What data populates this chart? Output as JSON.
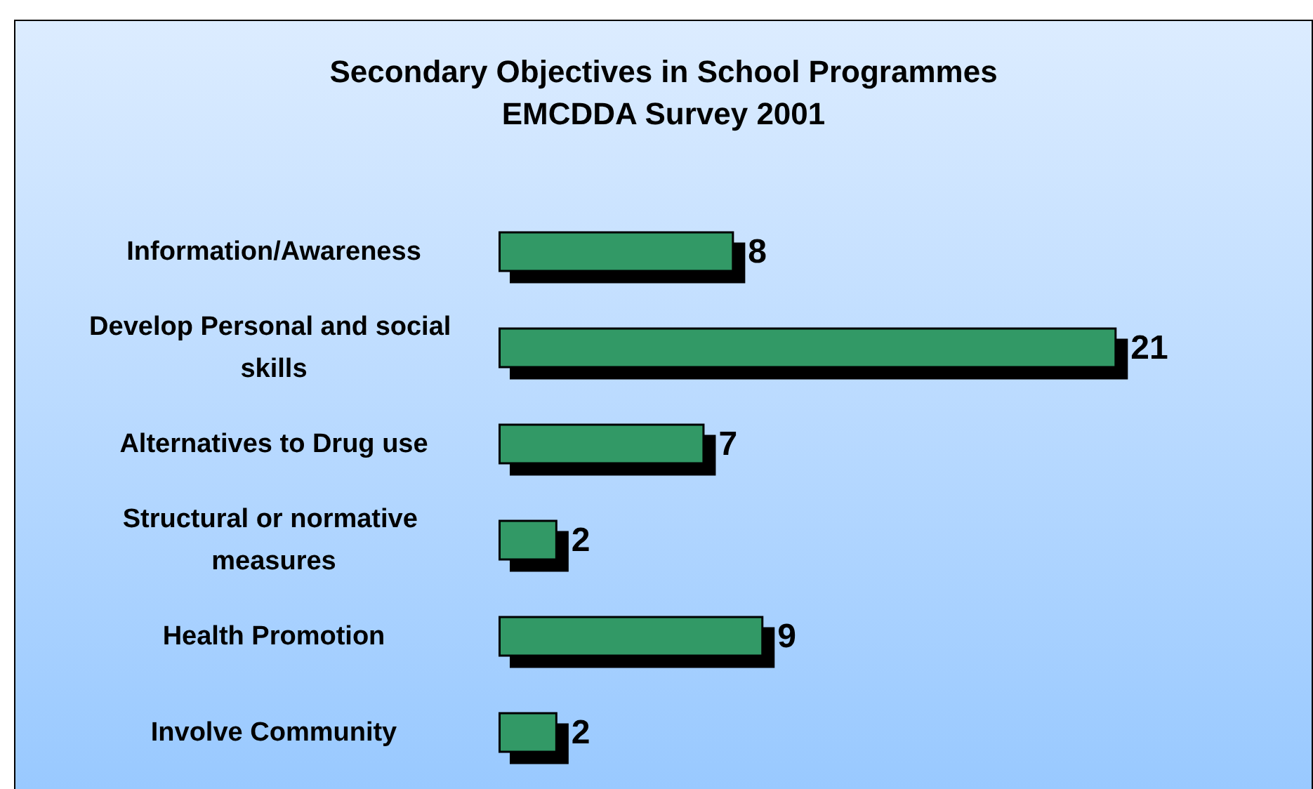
{
  "chart_data": {
    "type": "bar",
    "orientation": "horizontal",
    "title": "Secondary Objectives in School Programmes",
    "subtitle": "EMCDDA Survey 2001",
    "categories": [
      "Information/Awareness",
      "Develop Personal and social skills",
      "Alternatives to Drug use",
      "Structural or normative measures",
      "Health Promotion",
      "Involve Community"
    ],
    "values": [
      8,
      21,
      7,
      2,
      9,
      2
    ],
    "color": "#339966",
    "data_labels": true
  }
}
